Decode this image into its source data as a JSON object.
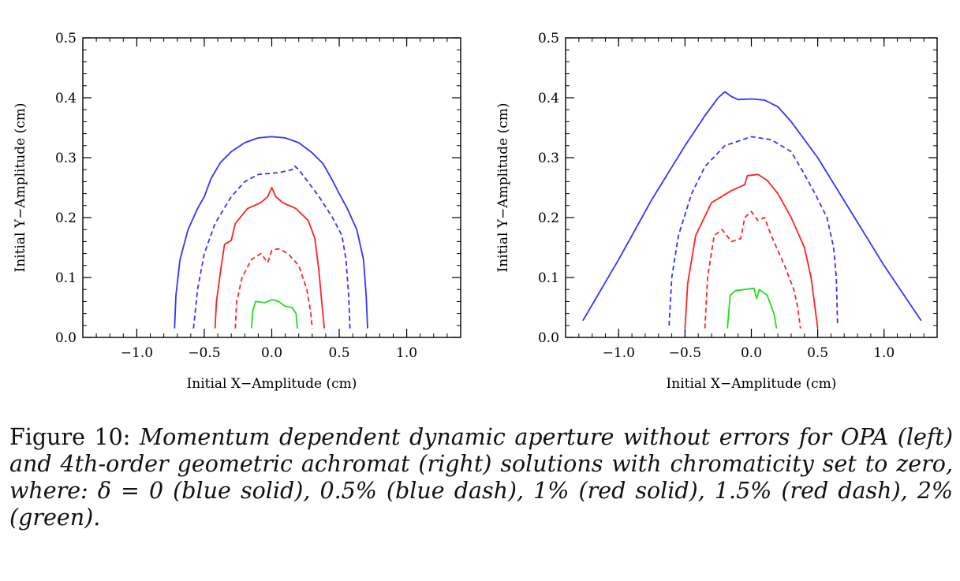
{
  "chart_data": [
    {
      "type": "line",
      "xlabel": "Initial X−Amplitude (cm)",
      "ylabel": "Initial Y−Amplitude (cm)",
      "xlim": [
        -1.4,
        1.4
      ],
      "ylim": [
        0.0,
        0.5
      ],
      "xticks": [
        "−1.0",
        "−0.5",
        "0.0",
        "0.5",
        "1.0"
      ],
      "xtick_values": [
        -1.0,
        -0.5,
        0.0,
        0.5,
        1.0
      ],
      "yticks": [
        "0.0",
        "0.1",
        "0.2",
        "0.3",
        "0.4",
        "0.5"
      ],
      "ytick_values": [
        0.0,
        0.1,
        0.2,
        0.3,
        0.4,
        0.5
      ],
      "series": [
        {
          "color": "#3333ff",
          "dash": "solid",
          "points": [
            [
              -0.72,
              0.015
            ],
            [
              -0.71,
              0.07
            ],
            [
              -0.68,
              0.13
            ],
            [
              -0.62,
              0.18
            ],
            [
              -0.55,
              0.215
            ],
            [
              -0.5,
              0.235
            ],
            [
              -0.45,
              0.265
            ],
            [
              -0.38,
              0.292
            ],
            [
              -0.3,
              0.31
            ],
            [
              -0.2,
              0.325
            ],
            [
              -0.1,
              0.333
            ],
            [
              0.0,
              0.335
            ],
            [
              0.1,
              0.333
            ],
            [
              0.2,
              0.325
            ],
            [
              0.3,
              0.308
            ],
            [
              0.38,
              0.29
            ],
            [
              0.45,
              0.262
            ],
            [
              0.5,
              0.24
            ],
            [
              0.56,
              0.215
            ],
            [
              0.63,
              0.18
            ],
            [
              0.68,
              0.13
            ],
            [
              0.7,
              0.07
            ],
            [
              0.71,
              0.015
            ]
          ]
        },
        {
          "color": "#3333ff",
          "dash": "dash",
          "points": [
            [
              -0.58,
              0.015
            ],
            [
              -0.55,
              0.08
            ],
            [
              -0.5,
              0.14
            ],
            [
              -0.42,
              0.19
            ],
            [
              -0.3,
              0.235
            ],
            [
              -0.2,
              0.26
            ],
            [
              -0.1,
              0.272
            ],
            [
              0.05,
              0.275
            ],
            [
              0.15,
              0.28
            ],
            [
              0.17,
              0.286
            ],
            [
              0.2,
              0.28
            ],
            [
              0.25,
              0.265
            ],
            [
              0.35,
              0.235
            ],
            [
              0.45,
              0.2
            ],
            [
              0.52,
              0.17
            ],
            [
              0.55,
              0.13
            ],
            [
              0.57,
              0.07
            ],
            [
              0.58,
              0.015
            ]
          ]
        },
        {
          "color": "#ff2222",
          "dash": "solid",
          "points": [
            [
              -0.42,
              0.015
            ],
            [
              -0.41,
              0.06
            ],
            [
              -0.38,
              0.11
            ],
            [
              -0.35,
              0.155
            ],
            [
              -0.3,
              0.162
            ],
            [
              -0.27,
              0.19
            ],
            [
              -0.18,
              0.215
            ],
            [
              -0.08,
              0.225
            ],
            [
              -0.03,
              0.235
            ],
            [
              0.0,
              0.25
            ],
            [
              0.03,
              0.235
            ],
            [
              0.08,
              0.225
            ],
            [
              0.18,
              0.215
            ],
            [
              0.27,
              0.195
            ],
            [
              0.32,
              0.165
            ],
            [
              0.35,
              0.11
            ],
            [
              0.37,
              0.06
            ],
            [
              0.39,
              0.015
            ]
          ]
        },
        {
          "color": "#ff2222",
          "dash": "dash",
          "points": [
            [
              -0.27,
              0.015
            ],
            [
              -0.26,
              0.06
            ],
            [
              -0.22,
              0.1
            ],
            [
              -0.15,
              0.13
            ],
            [
              -0.08,
              0.14
            ],
            [
              -0.03,
              0.125
            ],
            [
              0.0,
              0.145
            ],
            [
              0.05,
              0.148
            ],
            [
              0.12,
              0.14
            ],
            [
              0.2,
              0.12
            ],
            [
              0.26,
              0.08
            ],
            [
              0.29,
              0.04
            ],
            [
              0.3,
              0.015
            ]
          ]
        },
        {
          "color": "#22dd22",
          "dash": "solid",
          "points": [
            [
              -0.15,
              0.015
            ],
            [
              -0.14,
              0.045
            ],
            [
              -0.12,
              0.06
            ],
            [
              -0.05,
              0.058
            ],
            [
              0.0,
              0.063
            ],
            [
              0.05,
              0.06
            ],
            [
              0.1,
              0.052
            ],
            [
              0.15,
              0.05
            ],
            [
              0.18,
              0.04
            ],
            [
              0.19,
              0.015
            ]
          ]
        }
      ]
    },
    {
      "type": "line",
      "xlabel": "Initial X−Amplitude (cm)",
      "ylabel": "Initial Y−Amplitude (cm)",
      "xlim": [
        -1.4,
        1.4
      ],
      "ylim": [
        0.0,
        0.5
      ],
      "xticks": [
        "−1.0",
        "−0.5",
        "0.0",
        "0.5",
        "1.0"
      ],
      "xtick_values": [
        -1.0,
        -0.5,
        0.0,
        0.5,
        1.0
      ],
      "yticks": [
        "0.0",
        "0.1",
        "0.2",
        "0.3",
        "0.4",
        "0.5"
      ],
      "ytick_values": [
        0.0,
        0.1,
        0.2,
        0.3,
        0.4,
        0.5
      ],
      "series": [
        {
          "color": "#3333ff",
          "dash": "solid",
          "points": [
            [
              -1.27,
              0.028
            ],
            [
              -1.0,
              0.13
            ],
            [
              -0.75,
              0.23
            ],
            [
              -0.5,
              0.32
            ],
            [
              -0.35,
              0.37
            ],
            [
              -0.25,
              0.4
            ],
            [
              -0.2,
              0.41
            ],
            [
              -0.15,
              0.402
            ],
            [
              -0.1,
              0.397
            ],
            [
              0.0,
              0.398
            ],
            [
              0.1,
              0.396
            ],
            [
              0.2,
              0.385
            ],
            [
              0.3,
              0.36
            ],
            [
              0.5,
              0.3
            ],
            [
              0.75,
              0.21
            ],
            [
              1.0,
              0.12
            ],
            [
              1.28,
              0.028
            ]
          ]
        },
        {
          "color": "#3333ff",
          "dash": "dash",
          "points": [
            [
              -0.62,
              0.02
            ],
            [
              -0.6,
              0.1
            ],
            [
              -0.55,
              0.17
            ],
            [
              -0.45,
              0.24
            ],
            [
              -0.35,
              0.285
            ],
            [
              -0.2,
              0.32
            ],
            [
              0.0,
              0.335
            ],
            [
              0.15,
              0.33
            ],
            [
              0.3,
              0.31
            ],
            [
              0.38,
              0.28
            ],
            [
              0.48,
              0.24
            ],
            [
              0.57,
              0.2
            ],
            [
              0.62,
              0.15
            ],
            [
              0.64,
              0.1
            ],
            [
              0.65,
              0.02
            ]
          ]
        },
        {
          "color": "#ff2222",
          "dash": "solid",
          "points": [
            [
              -0.5,
              0.015
            ],
            [
              -0.48,
              0.09
            ],
            [
              -0.42,
              0.17
            ],
            [
              -0.3,
              0.225
            ],
            [
              -0.15,
              0.245
            ],
            [
              -0.05,
              0.255
            ],
            [
              -0.03,
              0.27
            ],
            [
              0.05,
              0.272
            ],
            [
              0.12,
              0.262
            ],
            [
              0.2,
              0.24
            ],
            [
              0.3,
              0.2
            ],
            [
              0.4,
              0.15
            ],
            [
              0.45,
              0.1
            ],
            [
              0.48,
              0.05
            ],
            [
              0.5,
              0.015
            ]
          ]
        },
        {
          "color": "#ff2222",
          "dash": "dash",
          "points": [
            [
              -0.35,
              0.015
            ],
            [
              -0.33,
              0.1
            ],
            [
              -0.28,
              0.17
            ],
            [
              -0.22,
              0.18
            ],
            [
              -0.15,
              0.16
            ],
            [
              -0.08,
              0.165
            ],
            [
              -0.05,
              0.2
            ],
            [
              0.0,
              0.21
            ],
            [
              0.05,
              0.195
            ],
            [
              0.1,
              0.2
            ],
            [
              0.15,
              0.17
            ],
            [
              0.25,
              0.12
            ],
            [
              0.32,
              0.08
            ],
            [
              0.35,
              0.05
            ],
            [
              0.37,
              0.015
            ]
          ]
        },
        {
          "color": "#22dd22",
          "dash": "solid",
          "points": [
            [
              -0.18,
              0.015
            ],
            [
              -0.16,
              0.07
            ],
            [
              -0.12,
              0.078
            ],
            [
              -0.05,
              0.08
            ],
            [
              0.02,
              0.082
            ],
            [
              0.04,
              0.065
            ],
            [
              0.06,
              0.08
            ],
            [
              0.12,
              0.07
            ],
            [
              0.17,
              0.04
            ],
            [
              0.19,
              0.015
            ]
          ]
        }
      ]
    }
  ],
  "caption": {
    "lead": "Figure 10:",
    "text": "Momentum dependent dynamic aperture without errors for OPA (left) and 4th-order geometric achromat (right) solutions with chromaticity set to zero, where: δ = 0 (blue solid), 0.5% (blue dash), 1% (red solid), 1.5% (red dash), 2% (green)."
  }
}
